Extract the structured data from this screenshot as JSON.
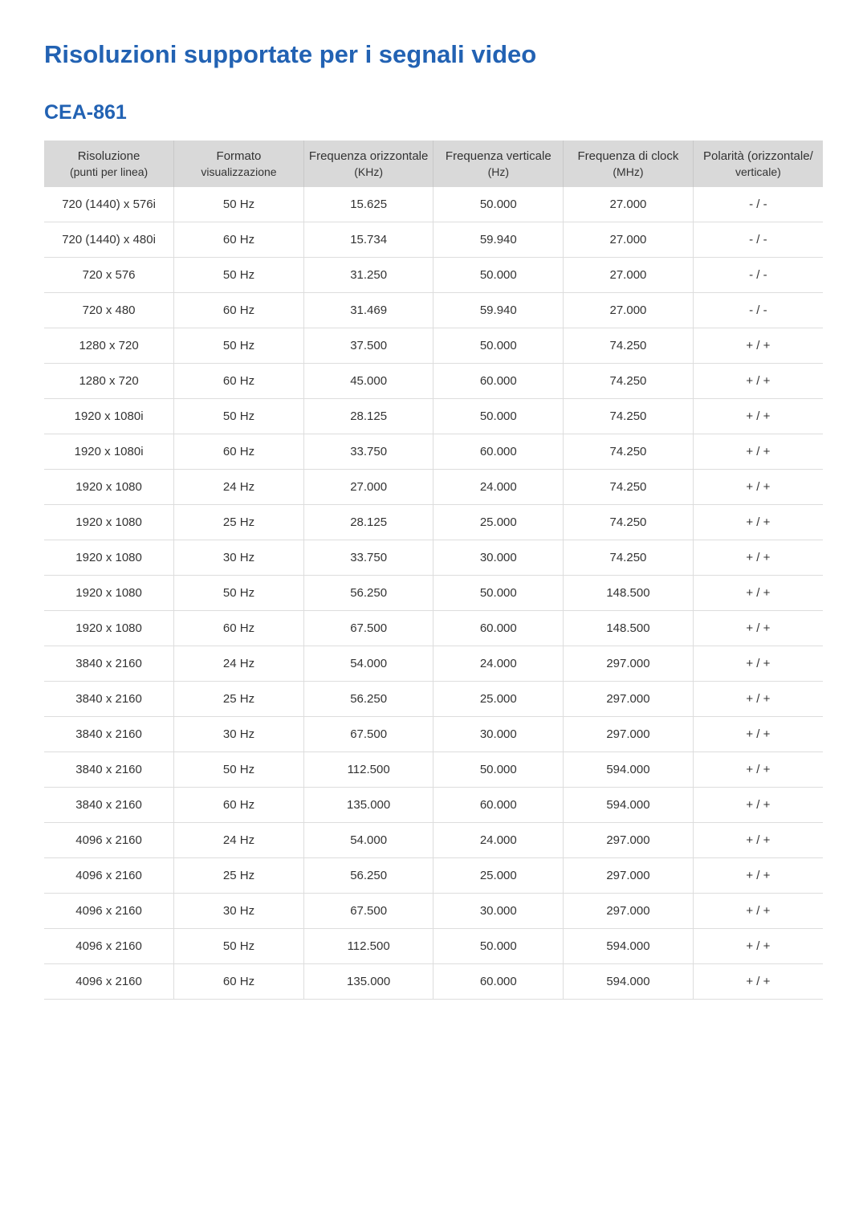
{
  "page": {
    "title": "Risoluzioni supportate per i segnali video",
    "subtitle": "CEA-861",
    "title_color": "#2262b3",
    "subtitle_color": "#2262b3",
    "background_color": "#ffffff",
    "header_bg": "#d9d9d9",
    "border_color": "#dddddd",
    "text_color": "#333333",
    "font_family": "Arial"
  },
  "table": {
    "columns": [
      {
        "line1": "Risoluzione",
        "line2": "(punti per linea)"
      },
      {
        "line1": "Formato",
        "line2": "visualizzazione"
      },
      {
        "line1": "Frequenza orizzontale",
        "line2": "(KHz)"
      },
      {
        "line1": "Frequenza verticale",
        "line2": "(Hz)"
      },
      {
        "line1": "Frequenza di clock",
        "line2": "(MHz)"
      },
      {
        "line1": "Polarità (orizzontale/",
        "line2": "verticale)"
      }
    ],
    "rows": [
      [
        "720 (1440) x 576i",
        "50 Hz",
        "15.625",
        "50.000",
        "27.000",
        "- / -"
      ],
      [
        "720 (1440) x 480i",
        "60 Hz",
        "15.734",
        "59.940",
        "27.000",
        "- / -"
      ],
      [
        "720 x 576",
        "50 Hz",
        "31.250",
        "50.000",
        "27.000",
        "- / -"
      ],
      [
        "720 x 480",
        "60 Hz",
        "31.469",
        "59.940",
        "27.000",
        "- / -"
      ],
      [
        "1280 x 720",
        "50 Hz",
        "37.500",
        "50.000",
        "74.250",
        "+ / +"
      ],
      [
        "1280 x 720",
        "60 Hz",
        "45.000",
        "60.000",
        "74.250",
        "+ / +"
      ],
      [
        "1920 x 1080i",
        "50 Hz",
        "28.125",
        "50.000",
        "74.250",
        "+ / +"
      ],
      [
        "1920 x 1080i",
        "60 Hz",
        "33.750",
        "60.000",
        "74.250",
        "+ / +"
      ],
      [
        "1920 x 1080",
        "24 Hz",
        "27.000",
        "24.000",
        "74.250",
        "+ / +"
      ],
      [
        "1920 x 1080",
        "25 Hz",
        "28.125",
        "25.000",
        "74.250",
        "+ / +"
      ],
      [
        "1920 x 1080",
        "30 Hz",
        "33.750",
        "30.000",
        "74.250",
        "+ / +"
      ],
      [
        "1920 x 1080",
        "50 Hz",
        "56.250",
        "50.000",
        "148.500",
        "+ / +"
      ],
      [
        "1920 x 1080",
        "60 Hz",
        "67.500",
        "60.000",
        "148.500",
        "+ / +"
      ],
      [
        "3840 x 2160",
        "24 Hz",
        "54.000",
        "24.000",
        "297.000",
        "+ / +"
      ],
      [
        "3840 x 2160",
        "25 Hz",
        "56.250",
        "25.000",
        "297.000",
        "+ / +"
      ],
      [
        "3840 x 2160",
        "30 Hz",
        "67.500",
        "30.000",
        "297.000",
        "+ / +"
      ],
      [
        "3840 x 2160",
        "50 Hz",
        "112.500",
        "50.000",
        "594.000",
        "+ / +"
      ],
      [
        "3840 x 2160",
        "60 Hz",
        "135.000",
        "60.000",
        "594.000",
        "+ / +"
      ],
      [
        "4096 x 2160",
        "24 Hz",
        "54.000",
        "24.000",
        "297.000",
        "+ / +"
      ],
      [
        "4096 x 2160",
        "25 Hz",
        "56.250",
        "25.000",
        "297.000",
        "+ / +"
      ],
      [
        "4096 x 2160",
        "30 Hz",
        "67.500",
        "30.000",
        "297.000",
        "+ / +"
      ],
      [
        "4096 x 2160",
        "50 Hz",
        "112.500",
        "50.000",
        "594.000",
        "+ / +"
      ],
      [
        "4096 x 2160",
        "60 Hz",
        "135.000",
        "60.000",
        "594.000",
        "+ / +"
      ]
    ]
  }
}
